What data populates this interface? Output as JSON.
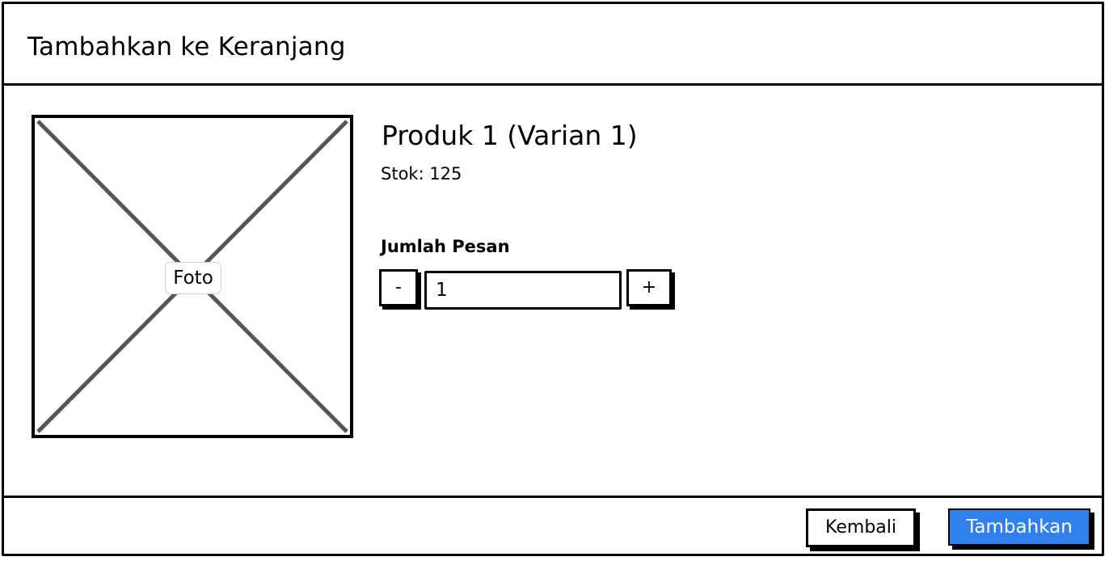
{
  "dialog": {
    "title": "Tambahkan ke Keranjang"
  },
  "product": {
    "photo_label": "Foto",
    "name": "Produk 1 (Varian 1)",
    "stock": "Stok: 125"
  },
  "quantity": {
    "label": "Jumlah Pesan",
    "decrement_label": "-",
    "value": "1",
    "increment_label": "+"
  },
  "footer": {
    "back_label": "Kembali",
    "add_label": "Tambahkan"
  },
  "colors": {
    "primary": "#2f80ed",
    "border": "#000000",
    "placeholder_lines": "#555555"
  },
  "icons": {
    "photo": "image-placeholder-icon"
  }
}
